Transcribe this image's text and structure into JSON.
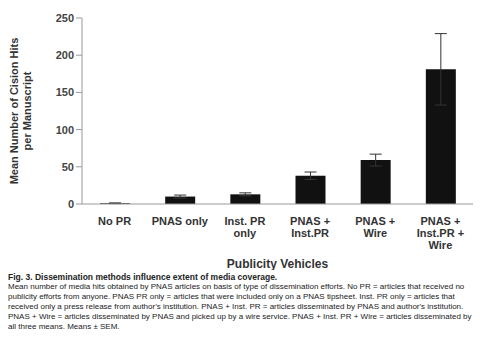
{
  "chart_data": {
    "type": "bar",
    "categories": [
      "No PR",
      "PNAS only",
      "Inst. PR only",
      "PNAS + Inst.PR",
      "PNAS + Wire",
      "PNAS + Inst.PR + Wire"
    ],
    "values": [
      1,
      10,
      13,
      38,
      59,
      181
    ],
    "errors": [
      0.5,
      2,
      2,
      5,
      8,
      48
    ],
    "color": "#111111",
    "ylim": [
      0,
      250
    ],
    "yticks": [
      0,
      50,
      100,
      150,
      200,
      250
    ],
    "grid": false,
    "x_label": "Publicity Vehicles",
    "y_label": "Mean Number of Cision Hits per Manuscript"
  },
  "caption": {
    "title": "Fig. 3. Dissemination methods influence extent of media coverage.",
    "text": "Mean number of media hits obtained by PNAS articles on basis of type of dissemination efforts. No PR = articles that received no publicity efforts from anyone. PNAS PR only = articles that were included only on a PNAS tipsheet. Inst. PR only = articles that received only a press release from author's institution. PNAS + Inst. PR = articles disseminated by PNAS and author's institution. PNAS + Wire = articles disseminated by PNAS and picked up by a wire service. PNAS + Inst. PR + Wire = articles disseminated by all three means. Means ± SEM."
  }
}
